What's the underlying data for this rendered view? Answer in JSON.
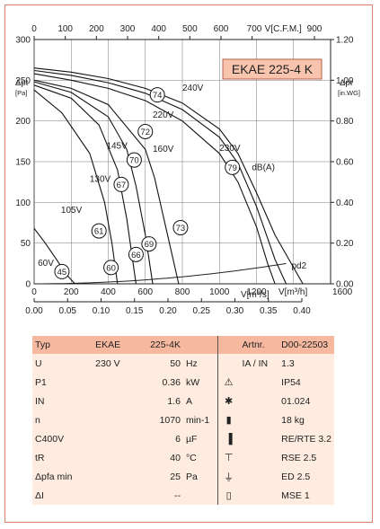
{
  "chart_data": {
    "type": "line",
    "title": "EKAE 225-4 K",
    "xlabel": "V[m³/h]",
    "ylabel": "Δpt [Pa]",
    "ylim": [
      0,
      300
    ],
    "xlim": [
      0,
      1600
    ],
    "grid": true,
    "y_ticks": [
      "0",
      "50",
      "100",
      "150",
      "200",
      "250",
      "300"
    ],
    "x_ticks": [
      "0",
      "200",
      "400",
      "600",
      "800",
      "1000",
      "1200"
    ],
    "x_end_tick": "1600",
    "top_axis": {
      "label": "V[C.F.M.]",
      "ticks": [
        "0",
        "100",
        "200",
        "300",
        "400",
        "500",
        "600",
        "700",
        "900"
      ]
    },
    "right_axis": {
      "label1": "Δpt",
      "label2": "[in.WG]",
      "ticks": [
        "0.00",
        "0.20",
        "0.40",
        "0.60",
        "0.80",
        "1.00",
        "1.20"
      ]
    },
    "bottom_axis": {
      "label": "V[m³/s]",
      "ticks": [
        "0.00",
        "0.05",
        "0.10",
        "0.15",
        "0.20",
        "0.25",
        "0.30",
        "0.35",
        "0.40"
      ]
    },
    "left_label_top": "Δpt",
    "left_label_unit": "[Pa]",
    "dyn_label": "pd2",
    "dba_label": "dB(A)",
    "series": [
      {
        "name": "240V",
        "x": [
          0,
          200,
          400,
          600,
          800,
          1000,
          1100,
          1200,
          1300,
          1400,
          1450
        ],
        "y": [
          265,
          260,
          252,
          240,
          222,
          190,
          160,
          112,
          60,
          20,
          0
        ]
      },
      {
        "name": "230V",
        "x": [
          0,
          200,
          400,
          600,
          800,
          1000,
          1100,
          1200,
          1300,
          1360
        ],
        "y": [
          262,
          256,
          247,
          234,
          214,
          180,
          148,
          95,
          30,
          0
        ]
      },
      {
        "name": "220V",
        "x": [
          0,
          200,
          400,
          600,
          800,
          1000,
          1100,
          1200,
          1260,
          1300
        ],
        "y": [
          258,
          250,
          240,
          225,
          200,
          160,
          125,
          70,
          25,
          0
        ]
      },
      {
        "name": "160V",
        "x": [
          0,
          200,
          400,
          600,
          650,
          700,
          750,
          780
        ],
        "y": [
          250,
          240,
          220,
          165,
          130,
          80,
          30,
          0
        ]
      },
      {
        "name": "145V",
        "x": [
          0,
          200,
          400,
          500,
          550,
          600,
          640
        ],
        "y": [
          248,
          235,
          205,
          165,
          120,
          60,
          0
        ]
      },
      {
        "name": "130V",
        "x": [
          0,
          200,
          350,
          450,
          500,
          550
        ],
        "y": [
          244,
          228,
          195,
          140,
          80,
          0
        ]
      },
      {
        "name": "105V",
        "x": [
          0,
          150,
          300,
          380,
          420,
          450
        ],
        "y": [
          238,
          210,
          160,
          100,
          50,
          0
        ]
      },
      {
        "name": "60V",
        "x": [
          0,
          60,
          120,
          180,
          220
        ],
        "y": [
          68,
          50,
          30,
          10,
          0
        ]
      }
    ],
    "dba_markers": [
      {
        "label": "74",
        "x": 665,
        "y": 232
      },
      {
        "label": "72",
        "x": 600,
        "y": 187
      },
      {
        "label": "70",
        "x": 540,
        "y": 152
      },
      {
        "label": "67",
        "x": 470,
        "y": 122
      },
      {
        "label": "61",
        "x": 350,
        "y": 65
      },
      {
        "label": "45",
        "x": 150,
        "y": 15
      },
      {
        "label": "60",
        "x": 415,
        "y": 20
      },
      {
        "label": "66",
        "x": 550,
        "y": 36
      },
      {
        "label": "69",
        "x": 620,
        "y": 49
      },
      {
        "label": "73",
        "x": 790,
        "y": 69
      },
      {
        "label": "79",
        "x": 1070,
        "y": 143
      }
    ],
    "series_label_pos": [
      {
        "name": "240V",
        "x": 800,
        "y": 237
      },
      {
        "name": "230V",
        "x": 1000,
        "y": 163
      },
      {
        "name": "220V",
        "x": 640,
        "y": 204
      },
      {
        "name": "160V",
        "x": 640,
        "y": 162
      },
      {
        "name": "145V",
        "x": 390,
        "y": 166
      },
      {
        "name": "130V",
        "x": 300,
        "y": 125
      },
      {
        "name": "105V",
        "x": 145,
        "y": 87
      },
      {
        "name": "60V",
        "x": 20,
        "y": 22
      }
    ]
  },
  "table": {
    "rows": [
      {
        "c1": "Typ",
        "c2": "EKAE",
        "c3": "225-4K",
        "c4": "",
        "i": "",
        "c5": "Artnr.",
        "c6": "D00-22503"
      },
      {
        "c1": "U",
        "c2": "230   V",
        "c3": "50",
        "c4": "Hz",
        "i": "",
        "c5": "IA / IN",
        "c6": "1.3"
      },
      {
        "c1": "P1",
        "c2": "",
        "c3": "0.36",
        "c4": "kW",
        "i": "warning-triangle",
        "c5": "",
        "c6": "IP54"
      },
      {
        "c1": "IN",
        "c2": "",
        "c3": "1.6",
        "c4": "A",
        "i": "star-box",
        "c5": "",
        "c6": "01.024"
      },
      {
        "c1": "n",
        "c2": "",
        "c3": "1070",
        "c4": "min-1",
        "i": "weight",
        "c5": "",
        "c6": "18 kg"
      },
      {
        "c1": "C400V",
        "c2": "",
        "c3": "6",
        "c4": "µF",
        "i": "motor-protection",
        "c5": "",
        "c6": "RE/RTE 3.2"
      },
      {
        "c1": "tR",
        "c2": "",
        "c3": "40",
        "c4": "°C",
        "i": "switch",
        "c5": "",
        "c6": "RSE 2.5"
      },
      {
        "c1": "Δpfa min",
        "c2": "",
        "c3": "25",
        "c4": "Pa",
        "i": "controller",
        "c5": "",
        "c6": "ED 2.5"
      },
      {
        "c1": "ΔI",
        "c2": "",
        "c3": "--",
        "c4": "",
        "i": "relay",
        "c5": "",
        "c6": "MSE 1"
      }
    ]
  },
  "colors": {
    "title_box": "#f8c4ae",
    "table_head": "#f6b9a0",
    "table_body": "#fdecdf",
    "frame": "#d9826a"
  }
}
